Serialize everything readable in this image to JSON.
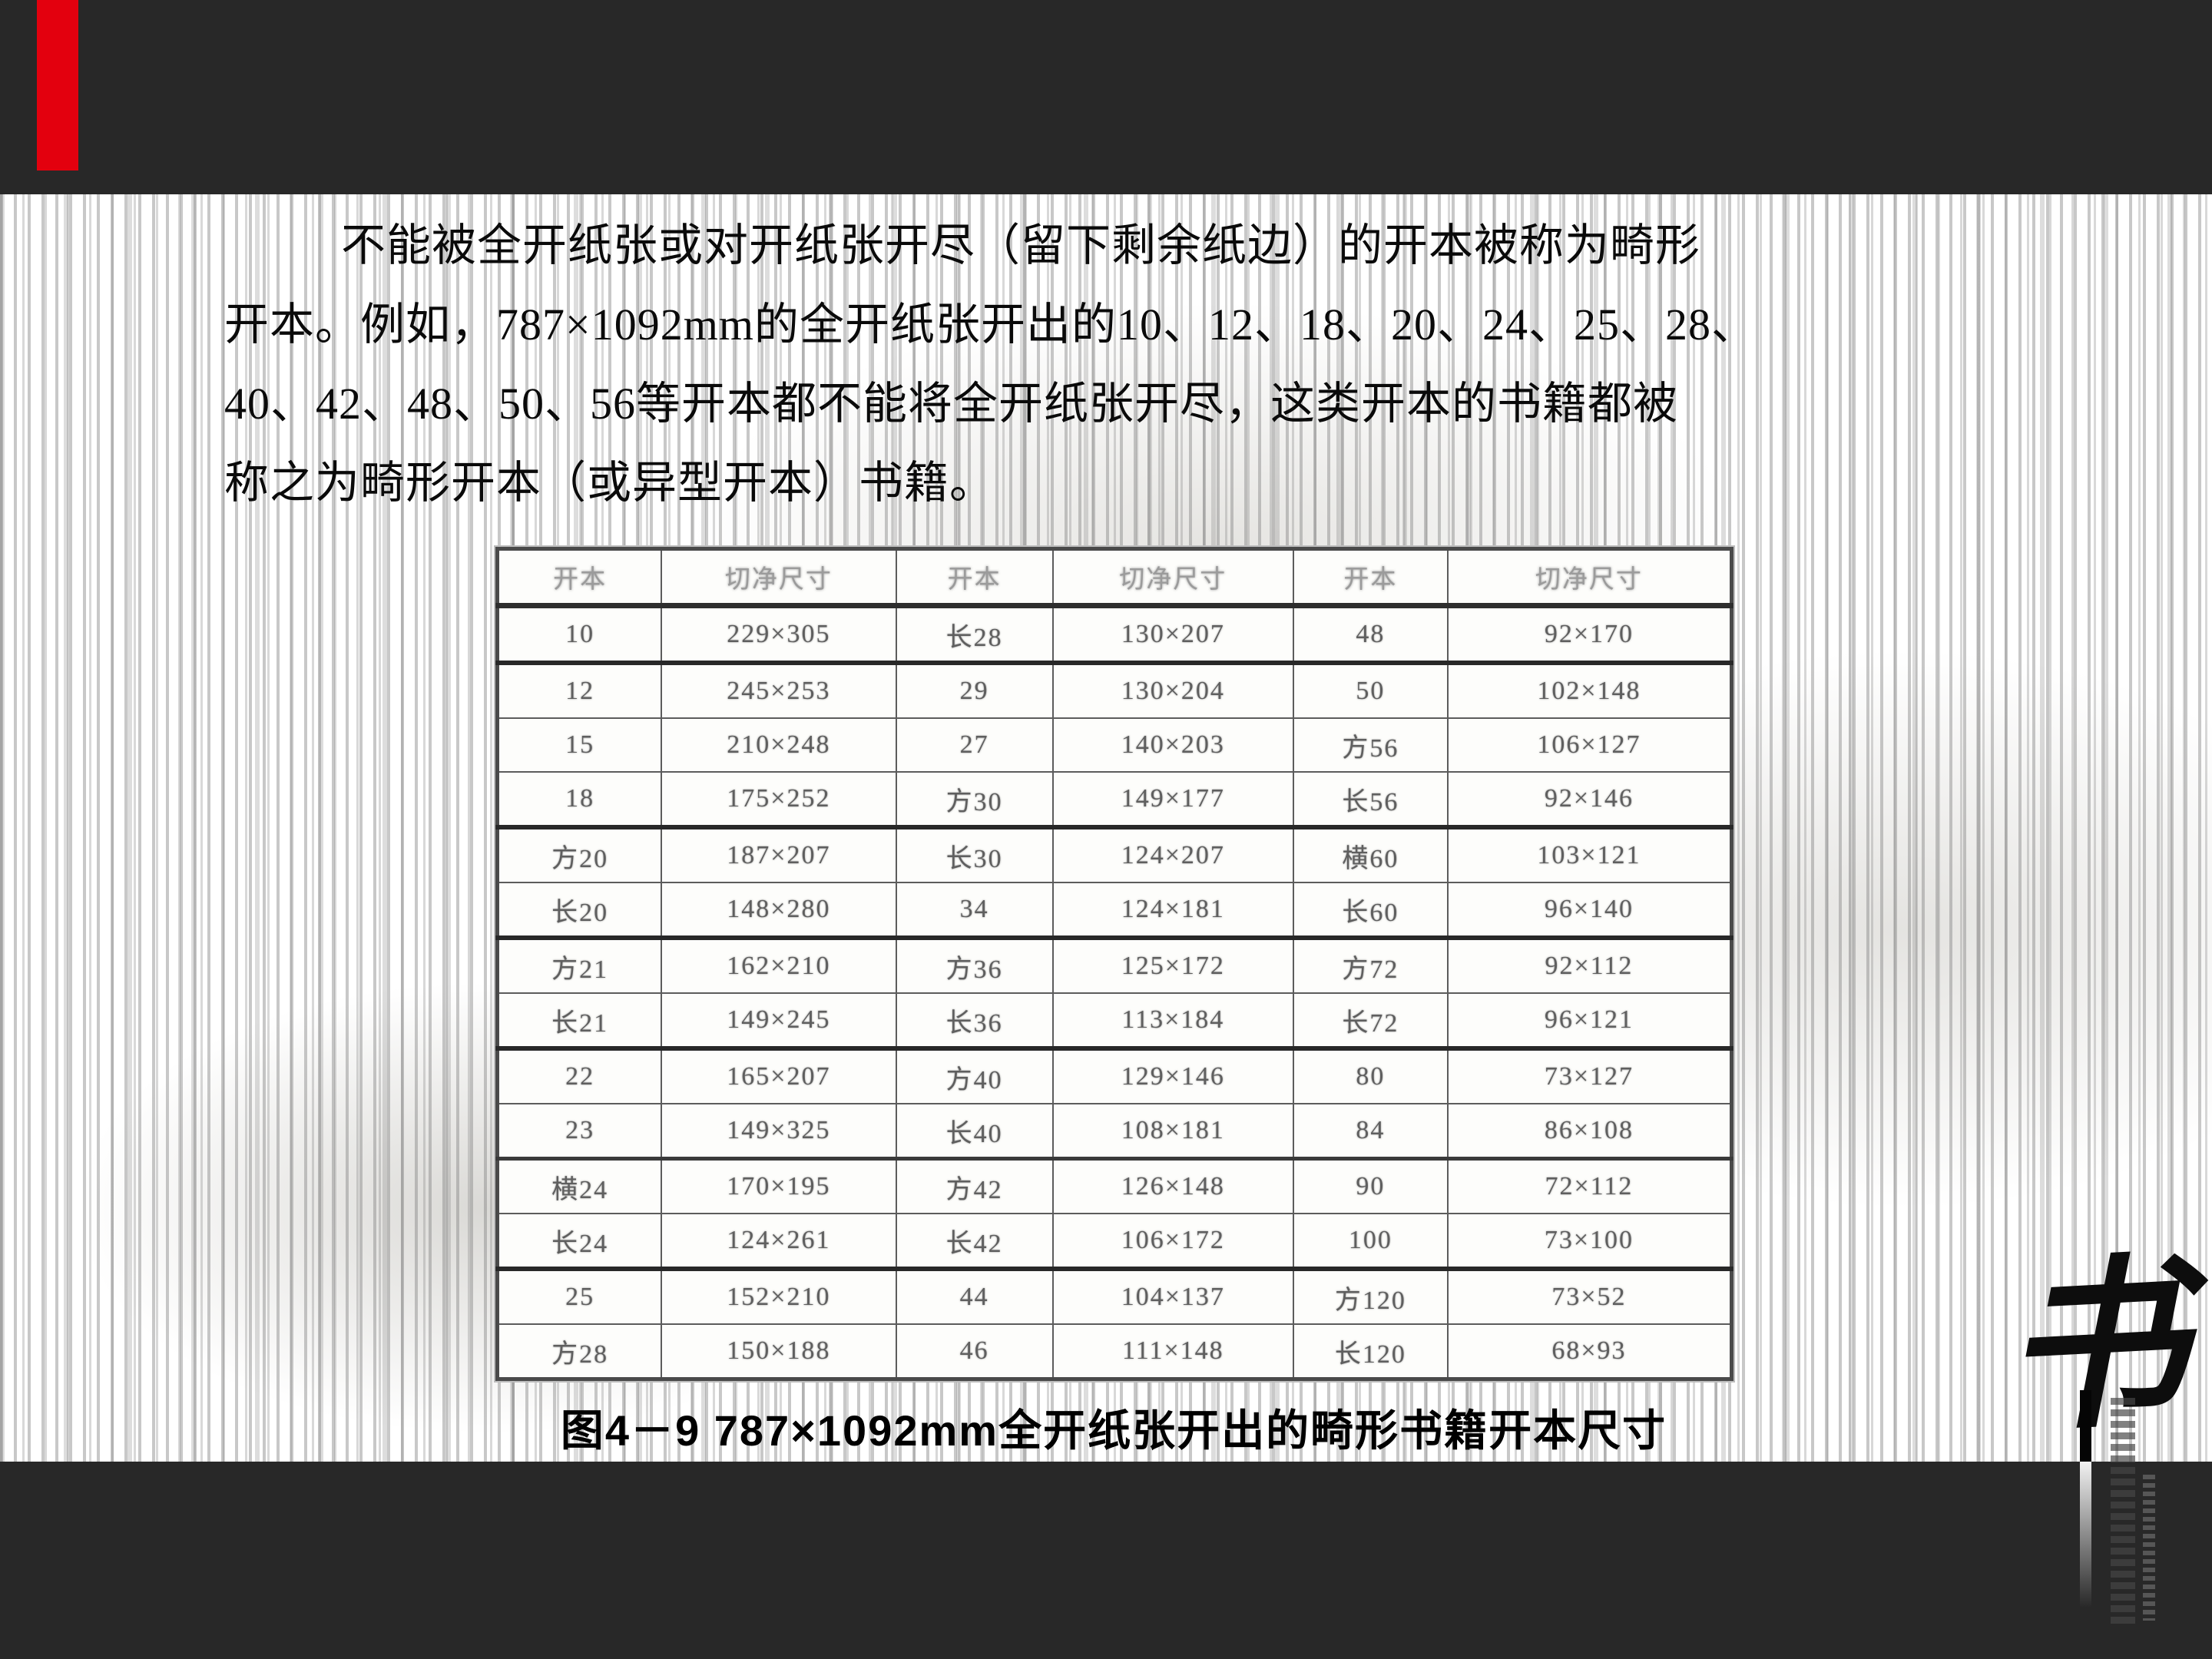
{
  "slide": {
    "paragraph": {
      "lines": [
        "不能被全开纸张或对开纸张开尽（留下剩余纸边）的开本被称为畸形",
        "开本。例如，787×1092mm的全开纸张开出的10、12、18、20、24、25、28、",
        "40、42、48、50、56等开本都不能将全开纸张开尽，这类开本的书籍都被",
        "称之为畸形开本（或异型开本）书籍。"
      ]
    },
    "figure_caption": "图4－9  787×1092mm全开纸张开出的畸形书籍开本尺寸",
    "logo_char": "书"
  },
  "table": {
    "headers": [
      "开本",
      "切净尺寸",
      "开本",
      "切净尺寸",
      "开本",
      "切净尺寸"
    ],
    "rows": [
      [
        "10",
        "229×305",
        "长28",
        "130×207",
        "48",
        "92×170"
      ],
      [
        "12",
        "245×253",
        "29",
        "130×204",
        "50",
        "102×148"
      ],
      [
        "15",
        "210×248",
        "27",
        "140×203",
        "方56",
        "106×127"
      ],
      [
        "18",
        "175×252",
        "方30",
        "149×177",
        "长56",
        "92×146"
      ],
      [
        "方20",
        "187×207",
        "长30",
        "124×207",
        "横60",
        "103×121"
      ],
      [
        "长20",
        "148×280",
        "34",
        "124×181",
        "长60",
        "96×140"
      ],
      [
        "方21",
        "162×210",
        "方36",
        "125×172",
        "方72",
        "92×112"
      ],
      [
        "长21",
        "149×245",
        "长36",
        "113×184",
        "长72",
        "96×121"
      ],
      [
        "22",
        "165×207",
        "方40",
        "129×146",
        "80",
        "73×127"
      ],
      [
        "23",
        "149×325",
        "长40",
        "108×181",
        "84",
        "86×108"
      ],
      [
        "横24",
        "170×195",
        "方42",
        "126×148",
        "90",
        "72×112"
      ],
      [
        "长24",
        "124×261",
        "长42",
        "106×172",
        "100",
        "73×100"
      ],
      [
        "25",
        "152×210",
        "44",
        "104×137",
        "方120",
        "73×52"
      ],
      [
        "方28",
        "150×188",
        "46",
        "111×148",
        "长120",
        "68×93"
      ]
    ],
    "column_widths_pct": [
      13.3,
      19.0,
      12.7,
      19.5,
      12.5,
      23.0
    ]
  },
  "colors": {
    "accent_red": "#e3000e",
    "band_dark": "#282828",
    "table_text_gray": "#5f5f5f"
  }
}
